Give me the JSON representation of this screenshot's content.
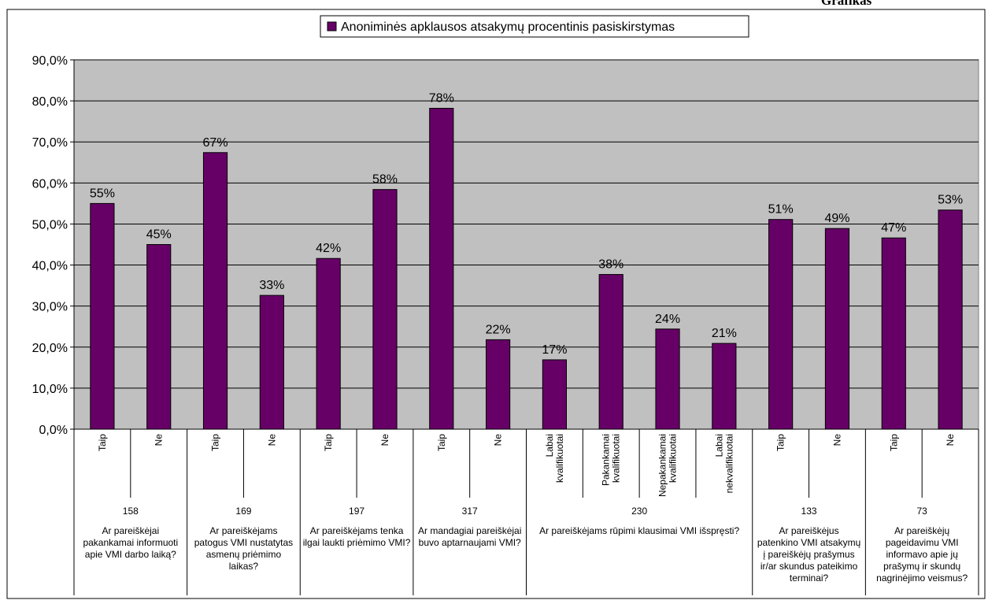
{
  "header": {
    "partial_title": "Grafikas"
  },
  "chart_data": {
    "type": "bar",
    "title": "",
    "legend": {
      "label": "Anoniminės apklausos atsakymų procentinis pasiskirstymas",
      "placement": "top"
    },
    "colors": {
      "bar": "#660066",
      "plot_bg": "#c0c0c0",
      "border": "#000000"
    },
    "ylim": [
      0,
      90
    ],
    "ytick_step": 10,
    "ytick_labels": [
      "0,0%",
      "10,0%",
      "20,0%",
      "30,0%",
      "40,0%",
      "50,0%",
      "60,0%",
      "70,0%",
      "80,0%",
      "90,0%"
    ],
    "grid": true,
    "categories": [
      "Taip",
      "Ne",
      "Taip",
      "Ne",
      "Taip",
      "Ne",
      "Taip",
      "Ne",
      "Labai kvalifikuotai",
      "Pakankamai kvalifikuotai",
      "Nepakankamai kvalifikuotai",
      "Labai nekvalifikuotai",
      "Taip",
      "Ne",
      "Taip",
      "Ne"
    ],
    "values": [
      55,
      45,
      67.4,
      32.6,
      41.6,
      58.4,
      78.2,
      21.8,
      16.9,
      37.7,
      24.4,
      20.9,
      51.1,
      48.9,
      46.6,
      53.4
    ],
    "data_labels": [
      "55%",
      "45%",
      "67%",
      "33%",
      "42%",
      "58%",
      "78%",
      "22%",
      "17%",
      "38%",
      "24%",
      "21%",
      "51%",
      "49%",
      "47%",
      "53%"
    ],
    "groups": [
      {
        "count": "158",
        "lines": [
          "Ar pareiškėjai",
          "pakankamai informuoti",
          "apie VMI darbo laiką?"
        ],
        "span": 2
      },
      {
        "count": "169",
        "lines": [
          "Ar pareiškėjams",
          "patogus VMI nustatytas",
          "asmenų priėmimo",
          "laikas?"
        ],
        "span": 2
      },
      {
        "count": "197",
        "lines": [
          "Ar pareiškėjams tenka",
          "ilgai laukti priėmimo VMI?"
        ],
        "span": 2
      },
      {
        "count": "317",
        "lines": [
          "Ar mandagiai pareiškėjai",
          "buvo aptarnaujami VMI?"
        ],
        "span": 2
      },
      {
        "count": "230",
        "lines": [
          "Ar pareiškėjams rūpimi klausimai VMI išspręsti?"
        ],
        "span": 4
      },
      {
        "count": "133",
        "lines": [
          "Ar pareiškėjus",
          "patenkino VMI atsakymų",
          "į pareiškėjų prašymus",
          "ir/ar skundus pateikimo",
          "terminai?"
        ],
        "span": 2
      },
      {
        "count": "73",
        "lines": [
          "Ar pareiškėjų",
          "pageidavimu VMI",
          "informavo apie jų",
          "prašymų ir skundų",
          "nagrinėjimo veismus?"
        ],
        "span": 2
      }
    ]
  }
}
